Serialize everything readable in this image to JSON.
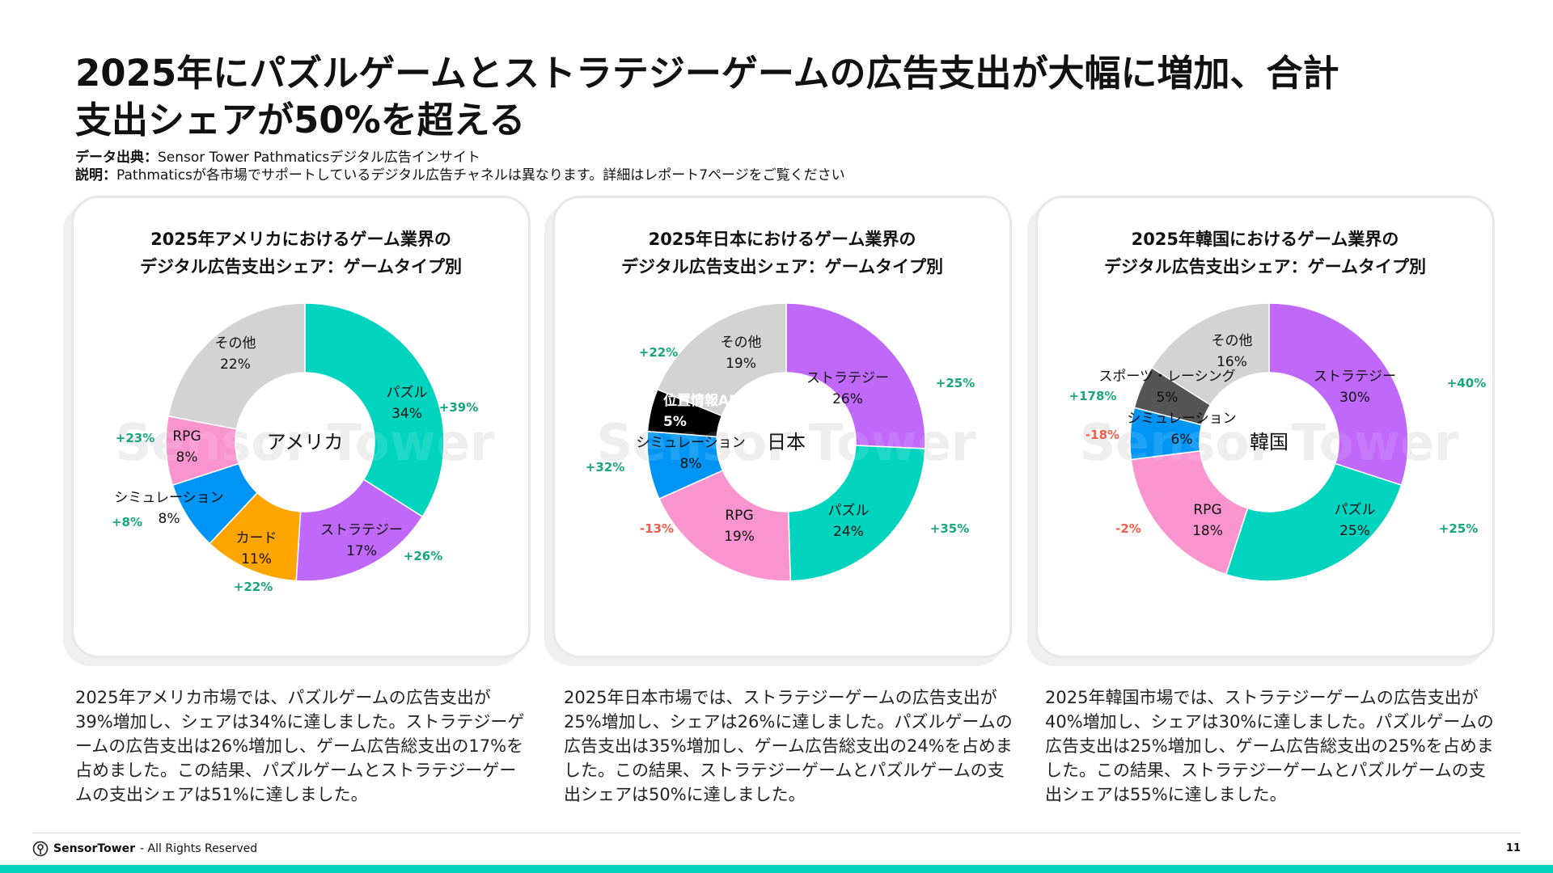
{
  "title": {
    "line1": "2025年にパズルゲームとストラテジーゲームの広告支出が大幅に増加、合計",
    "line2": "支出シェアが50%を超える"
  },
  "source": {
    "data_label": "データ出典：",
    "data_text": "Sensor Tower Pathmaticsデジタル広告インサイト",
    "note_label": "説明：",
    "note_text": "Pathmaticsが各市場でサポートしているデジタル広告チャネルは異なります。詳細はレポート7ページをご覧ください"
  },
  "watermark": "Sensor Tower",
  "colors": {
    "teal": "#00d4bf",
    "purple": "#bf68fa",
    "pink": "#f994ce",
    "blue": "#0095f5",
    "orange": "#ffa500",
    "gray": "#d3d3d3",
    "black": "#000000",
    "dark_gray": "#555555",
    "positive": "#17a67e",
    "negative": "#f25c4a"
  },
  "chart_data": [
    {
      "type": "pie",
      "title_line1": "2025年アメリカにおけるゲーム業界の",
      "title_line2": "デジタル広告支出シェア：ゲームタイプ別",
      "center_label": "アメリカ",
      "slices": [
        {
          "name": "パズル",
          "value": 34,
          "value_label": "34%",
          "change": "+39%",
          "color": "#00d4bf"
        },
        {
          "name": "ストラテジー",
          "value": 17,
          "value_label": "17%",
          "change": "+26%",
          "color": "#bf68fa"
        },
        {
          "name": "カード",
          "value": 11,
          "value_label": "11%",
          "change": "+22%",
          "color": "#ffa500"
        },
        {
          "name": "シミュレーション",
          "value": 8,
          "value_label": "8%",
          "change": "+8%",
          "color": "#0095f5"
        },
        {
          "name": "RPG",
          "value": 8,
          "value_label": "8%",
          "change": "+23%",
          "color": "#f994ce"
        },
        {
          "name": "その他",
          "value": 22,
          "value_label": "22%",
          "change": "",
          "color": "#d3d3d3"
        }
      ]
    },
    {
      "type": "pie",
      "title_line1": "2025年日本におけるゲーム業界の",
      "title_line2": "デジタル広告支出シェア：ゲームタイプ別",
      "center_label": "日本",
      "slices": [
        {
          "name": "ストラテジー",
          "value": 26,
          "value_label": "26%",
          "change": "+25%",
          "color": "#bf68fa"
        },
        {
          "name": "パズル",
          "value": 24,
          "value_label": "24%",
          "change": "+35%",
          "color": "#00d4bf"
        },
        {
          "name": "RPG",
          "value": 19,
          "value_label": "19%",
          "change": "-13%",
          "color": "#f994ce"
        },
        {
          "name": "シミュレーション",
          "value": 8,
          "value_label": "8%",
          "change": "+32%",
          "color": "#0095f5"
        },
        {
          "name": "位置情報AR",
          "value": 5,
          "value_label": "5%",
          "change": "",
          "color": "#000000"
        },
        {
          "name": "その他",
          "value": 19,
          "value_label": "19%",
          "change": "+22%",
          "color": "#d3d3d3"
        }
      ]
    },
    {
      "type": "pie",
      "title_line1": "2025年韓国におけるゲーム業界の",
      "title_line2": "デジタル広告支出シェア：ゲームタイプ別",
      "center_label": "韓国",
      "slices": [
        {
          "name": "ストラテジー",
          "value": 30,
          "value_label": "30%",
          "change": "+40%",
          "color": "#bf68fa"
        },
        {
          "name": "パズル",
          "value": 25,
          "value_label": "25%",
          "change": "+25%",
          "color": "#00d4bf"
        },
        {
          "name": "RPG",
          "value": 18,
          "value_label": "18%",
          "change": "-2%",
          "color": "#f994ce"
        },
        {
          "name": "シミュレーション",
          "value": 6,
          "value_label": "6%",
          "change": "-18%",
          "color": "#0095f5"
        },
        {
          "name": "スポーツ・レーシング",
          "value": 5,
          "value_label": "5%",
          "change": "+178%",
          "color": "#555555"
        },
        {
          "name": "その他",
          "value": 16,
          "value_label": "16%",
          "change": "",
          "color": "#d3d3d3"
        }
      ]
    }
  ],
  "descriptions": [
    "2025年アメリカ市場では、パズルゲームの広告支出が39%増加し、シェアは34%に達しました。ストラテジーゲームの広告支出は26%増加し、ゲーム広告総支出の17%を占めました。この結果、パズルゲームとストラテジーゲームの支出シェアは51%に達しました。",
    "2025年日本市場では、ストラテジーゲームの広告支出が25%増加し、シェアは26%に達しました。パズルゲームの広告支出は35%増加し、ゲーム広告総支出の24%を占めました。この結果、ストラテジーゲームとパズルゲームの支出シェアは50%に達しました。",
    "2025年韓国市場では、ストラテジーゲームの広告支出が40%増加し、シェアは30%に達しました。パズルゲームの広告支出は25%増加し、ゲーム広告総支出の25%を占めました。この結果、ストラテジーゲームとパズルゲームの支出シェアは55%に達しました。"
  ],
  "footer": {
    "brand": "SensorTower",
    "rights": "- All Rights Reserved",
    "page": "11"
  }
}
